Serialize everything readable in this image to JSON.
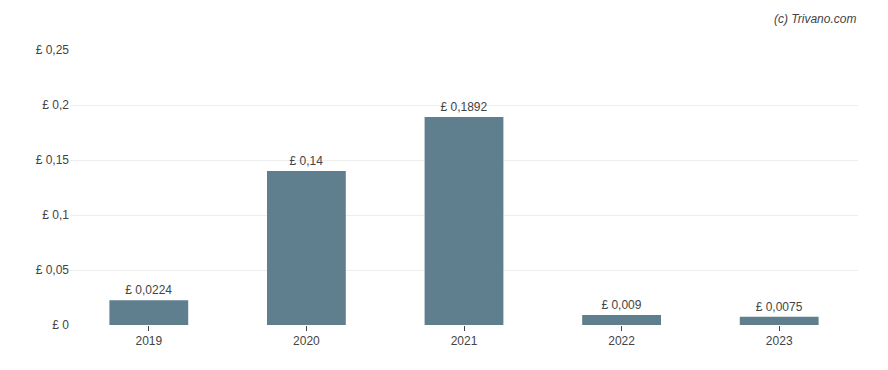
{
  "chart_data": {
    "type": "bar",
    "categories": [
      "2019",
      "2020",
      "2021",
      "2022",
      "2023"
    ],
    "values": [
      0.0224,
      0.14,
      0.1892,
      0.009,
      0.0075
    ],
    "value_labels": [
      "£ 0,0224",
      "£ 0,14",
      "£ 0,1892",
      "£ 0,009",
      "£ 0,0075"
    ],
    "data_labels": true,
    "color": "#5f7f8e",
    "ylim": [
      0,
      0.25
    ],
    "yticks": [
      {
        "value": 0,
        "label": "£ 0"
      },
      {
        "value": 0.05,
        "label": "£ 0,05"
      },
      {
        "value": 0.1,
        "label": "£ 0,1"
      },
      {
        "value": 0.15,
        "label": "£ 0,15"
      },
      {
        "value": 0.2,
        "label": "£ 0,2"
      },
      {
        "value": 0.25,
        "label": "£ 0,25"
      }
    ],
    "grid": true,
    "annotations": [
      "(c) Trivano.com"
    ]
  }
}
